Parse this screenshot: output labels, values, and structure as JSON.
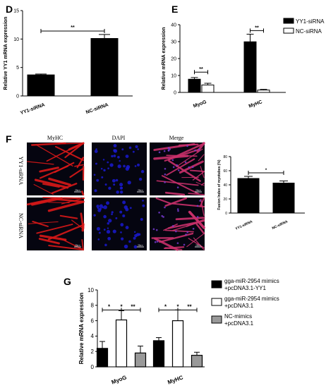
{
  "panels": {
    "D": "D",
    "E": "E",
    "F": "F",
    "G": "G"
  },
  "micrograph": {
    "columns": [
      "MyHC",
      "DAPI",
      "Merge"
    ],
    "rows": [
      "YY1-siRNA",
      "NC-siRNA"
    ],
    "scale_label": "20μm",
    "colors": {
      "myhc": "#d81818",
      "dapi": "#1a1ad0",
      "merge": "#c8306a",
      "background": "#050510"
    }
  },
  "chart_data": [
    {
      "id": "D",
      "type": "bar",
      "categories": [
        "YY1-siRNA",
        "NC-siRNA"
      ],
      "values": [
        3.7,
        10.1
      ],
      "errors": [
        0.15,
        0.7
      ],
      "colors": [
        "#000000",
        "#000000"
      ],
      "ylabel": "Relative YY1 mRNA expression",
      "ylim": [
        0,
        15
      ],
      "yticks": [
        0,
        5,
        10,
        15
      ],
      "significance": [
        {
          "from": 0,
          "to": 1,
          "label": "**"
        }
      ]
    },
    {
      "id": "E",
      "type": "bar",
      "categories": [
        "MyoG",
        "MyHC"
      ],
      "series": [
        {
          "name": "YY1-siRNA",
          "values": [
            7.8,
            29.9
          ],
          "errors": [
            1.0,
            4.5
          ],
          "color": "#000000"
        },
        {
          "name": "NC-siRNA",
          "values": [
            4.4,
            1.4
          ],
          "errors": [
            1.0,
            0.4
          ],
          "color": "#ffffff"
        }
      ],
      "ylabel": "Relative mRNA expression",
      "ylim": [
        0,
        40
      ],
      "yticks": [
        0,
        10,
        20,
        30,
        40
      ],
      "legend": "top-right",
      "significance": [
        {
          "category": 0,
          "label": "**"
        },
        {
          "category": 1,
          "label": "**"
        }
      ]
    },
    {
      "id": "F-bar",
      "type": "bar",
      "categories": [
        "YY1-siRNA",
        "NC-siRNA"
      ],
      "values": [
        49,
        42.5
      ],
      "errors": [
        3,
        3
      ],
      "colors": [
        "#000000",
        "#000000"
      ],
      "ylabel": "Fusion Index of myotubes (%)",
      "ylim": [
        0,
        80
      ],
      "yticks": [
        0,
        20,
        40,
        60,
        80
      ],
      "significance": [
        {
          "from": 0,
          "to": 1,
          "label": "*"
        }
      ]
    },
    {
      "id": "G",
      "type": "bar",
      "categories": [
        "MyoG",
        "MyHC"
      ],
      "series": [
        {
          "name": "gga-miR-2954 mimics\n+pcDNA3.1-YY1",
          "values": [
            2.4,
            3.4
          ],
          "errors": [
            0.9,
            0.4
          ],
          "color": "#000000"
        },
        {
          "name": "gga-miR-2954 mimics\n+pcDNA3.1",
          "values": [
            6.1,
            6.0
          ],
          "errors": [
            1.2,
            1.4
          ],
          "color": "#ffffff"
        },
        {
          "name": "NC-mimics\n+pcDNA3.1",
          "values": [
            1.8,
            1.5
          ],
          "errors": [
            0.9,
            0.4
          ],
          "color": "#999999"
        }
      ],
      "ylabel": "Relative mRNA expression",
      "ylim": [
        0,
        10
      ],
      "yticks": [
        0,
        2,
        4,
        6,
        8,
        10
      ],
      "legend": "right",
      "significance_labels": [
        "*",
        "*",
        "**"
      ]
    }
  ]
}
